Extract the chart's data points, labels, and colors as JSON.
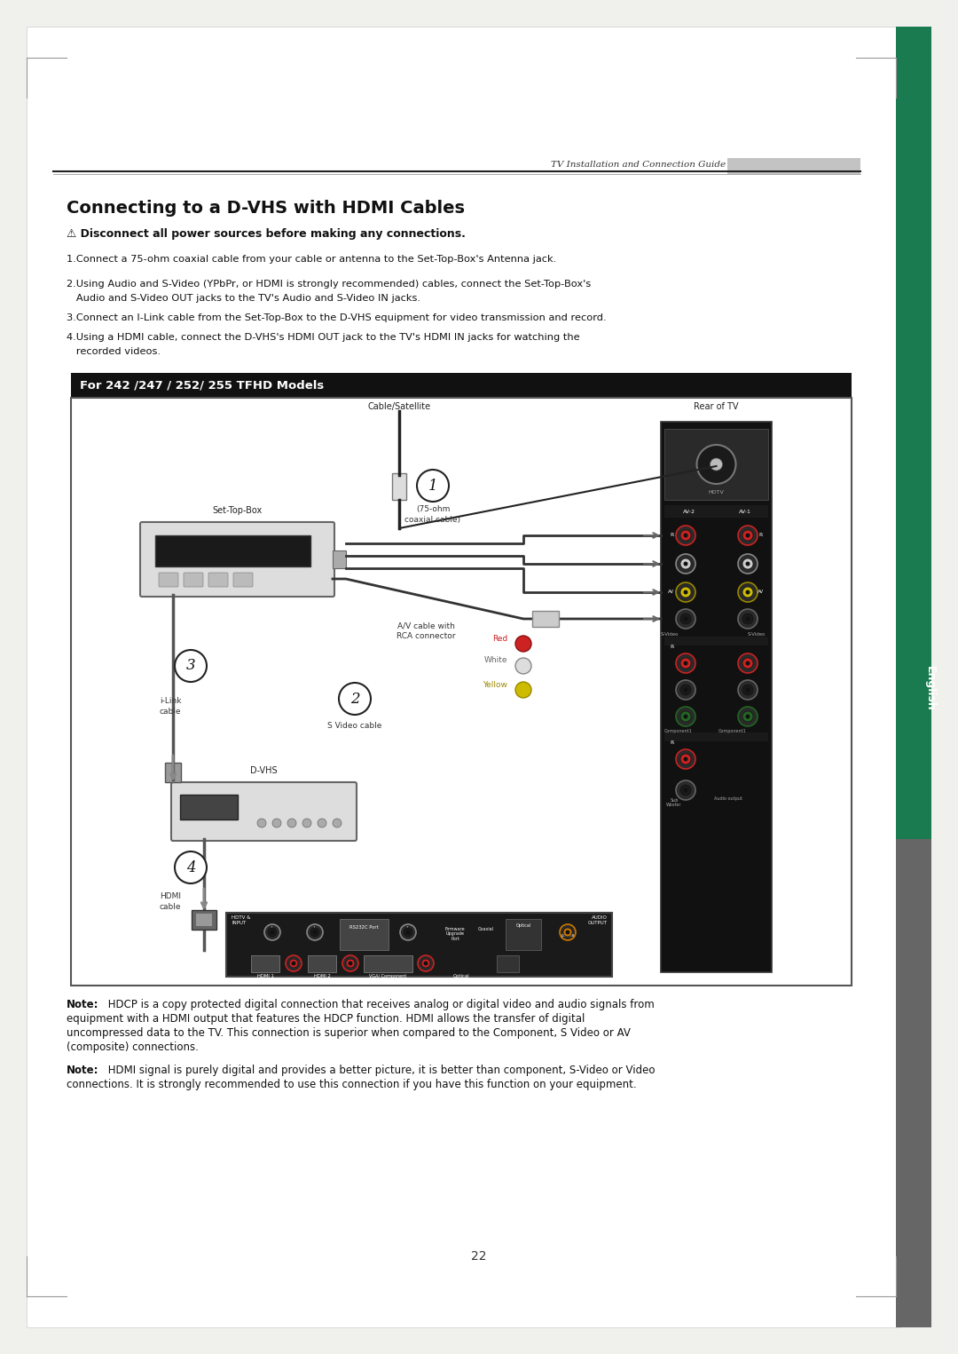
{
  "bg_color": "#f0f0ec",
  "page_bg": "#ffffff",
  "green_sidebar_color": "#1a7a50",
  "dark_gray_sidebar": "#555555",
  "title": "Connecting to a D-VHS with HDMI Cables",
  "warning_text": "Disconnect all power sources before making any connections.",
  "header_label": "TV Installation and Connection Guide",
  "diagram_title": "For 242 /247 / 252/ 255 TFHD Models",
  "step1": "1.Connect a 75-ohm coaxial cable from your cable or antenna to the Set-Top-Box's Antenna jack.",
  "step2a": "2.Using Audio and S-Video (YPbPr, or HDMI is strongly recommended) cables, connect the Set-Top-Box's",
  "step2b": "   Audio and S-Video OUT jacks to the TV's Audio and S-Video IN jacks.",
  "step3": "3.Connect an I-Link cable from the Set-Top-Box to the D-VHS equipment for video transmission and record.",
  "step4a": "4.Using a HDMI cable, connect the D-VHS's HDMI OUT jack to the TV's HDMI IN jacks for watching the",
  "step4b": "   recorded videos.",
  "note1_lines": [
    "Note: HDCP is a copy protected digital connection that receives analog or digital video and audio signals from",
    "equipment with a HDMI output that features the HDCP function. HDMI allows the transfer of digital",
    "uncompressed data to the TV. This connection is superior when compared to the Component, S Video or AV",
    "(composite) connections."
  ],
  "note2_lines": [
    "Note: HDMI signal is purely digital and provides a better picture, it is better than component, S-Video or Video",
    "connections. It is strongly recommended to use this connection if you have this function on your equipment."
  ],
  "page_number": "22",
  "english_sidebar": "English"
}
